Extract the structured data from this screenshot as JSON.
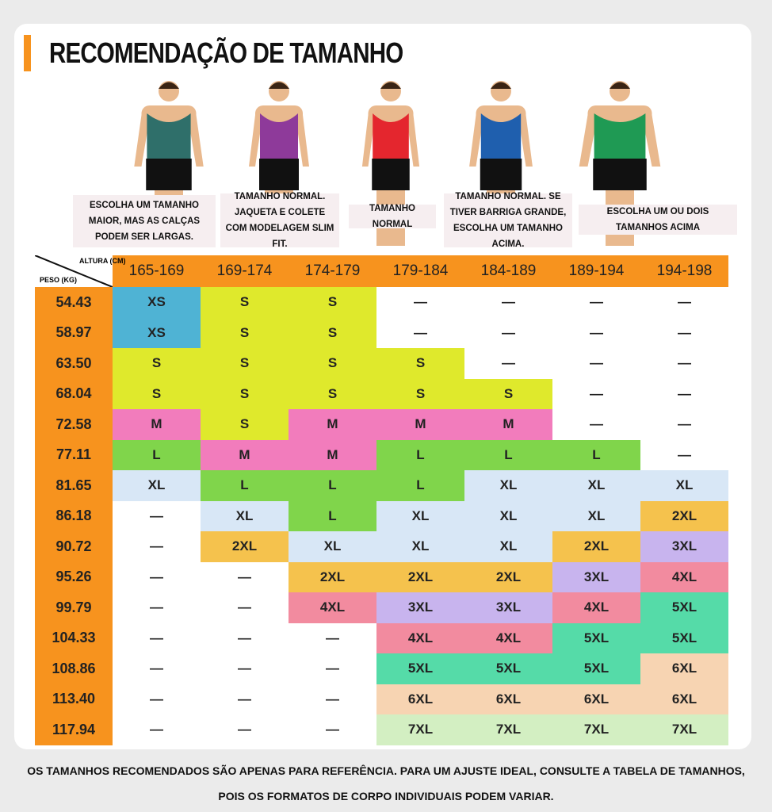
{
  "title": "RECOMENDAÇÃO DE TAMANHO",
  "figures": [
    {
      "note": "ESCOLHA UM TAMANHO MAIOR, MAS AS CALÇAS PODEM SER LARGAS.",
      "shirt_color": "#2f6f6a"
    },
    {
      "note": "TAMANHO NORMAL. JAQUETA E COLETE COM MODELAGEM SLIM FIT.",
      "shirt_color": "#8e3a9a"
    },
    {
      "note": "TAMANHO NORMAL",
      "shirt_color": "#e4262e"
    },
    {
      "note": "TAMANHO NORMAL. SE TIVER BARRIGA GRANDE, ESCOLHA UM TAMANHO ACIMA.",
      "shirt_color": "#1f5fae"
    },
    {
      "note": "ESCOLHA UM OU DOIS TAMANHOS ACIMA",
      "shirt_color": "#1f9a54"
    }
  ],
  "table": {
    "height_label": "ALTURA (CM)",
    "weight_label": "PESO (KG)",
    "columns": [
      "165-169",
      "169-174",
      "174-179",
      "179-184",
      "184-189",
      "189-194",
      "194-198"
    ],
    "colors": {
      "XS": "#4fb3d4",
      "S": "#dfe92c",
      "M": "#f27cbc",
      "L": "#80d54b",
      "XL": "#d8e7f6",
      "2XL": "#f5c24d",
      "3XL": "#c8b4ee",
      "4XL": "#f28b9f",
      "5XL": "#55dba8",
      "6XL": "#f7d4b2",
      "7XL": "#d3efc2"
    },
    "rows": [
      {
        "weight": "54.43",
        "cells": [
          "XS",
          "S",
          "S",
          "—",
          "—",
          "—",
          "—"
        ]
      },
      {
        "weight": "58.97",
        "cells": [
          "XS",
          "S",
          "S",
          "—",
          "—",
          "—",
          "—"
        ]
      },
      {
        "weight": "63.50",
        "cells": [
          "S",
          "S",
          "S",
          "S",
          "—",
          "—",
          "—"
        ]
      },
      {
        "weight": "68.04",
        "cells": [
          "S",
          "S",
          "S",
          "S",
          "S",
          "—",
          "—"
        ]
      },
      {
        "weight": "72.58",
        "cells": [
          "M",
          "S",
          "M",
          "M",
          "M",
          "—",
          "—"
        ]
      },
      {
        "weight": "77.11",
        "cells": [
          "L",
          "M",
          "M",
          "L",
          "L",
          "L",
          "—"
        ]
      },
      {
        "weight": "81.65",
        "cells": [
          "XL",
          "L",
          "L",
          "L",
          "XL",
          "XL",
          "XL"
        ]
      },
      {
        "weight": "86.18",
        "cells": [
          "—",
          "XL",
          "L",
          "XL",
          "XL",
          "XL",
          "2XL"
        ]
      },
      {
        "weight": "90.72",
        "cells": [
          "—",
          "2XL",
          "XL",
          "XL",
          "XL",
          "2XL",
          "3XL"
        ]
      },
      {
        "weight": "95.26",
        "cells": [
          "—",
          "—",
          "2XL",
          "2XL",
          "2XL",
          "3XL",
          "4XL"
        ]
      },
      {
        "weight": "99.79",
        "cells": [
          "—",
          "—",
          "4XL",
          "3XL",
          "3XL",
          "4XL",
          "5XL"
        ]
      },
      {
        "weight": "104.33",
        "cells": [
          "—",
          "—",
          "—",
          "4XL",
          "4XL",
          "5XL",
          "5XL"
        ]
      },
      {
        "weight": "108.86",
        "cells": [
          "—",
          "—",
          "—",
          "5XL",
          "5XL",
          "5XL",
          "6XL"
        ]
      },
      {
        "weight": "113.40",
        "cells": [
          "—",
          "—",
          "—",
          "6XL",
          "6XL",
          "6XL",
          "6XL"
        ]
      },
      {
        "weight": "117.94",
        "cells": [
          "—",
          "—",
          "—",
          "7XL",
          "7XL",
          "7XL",
          "7XL"
        ]
      }
    ]
  },
  "footer": "OS TAMANHOS RECOMENDADOS SÃO APENAS PARA REFERÊNCIA. PARA UM AJUSTE IDEAL, CONSULTE A TABELA DE TAMANHOS, POIS OS FORMATOS DE CORPO INDIVIDUAIS PODEM VARIAR."
}
